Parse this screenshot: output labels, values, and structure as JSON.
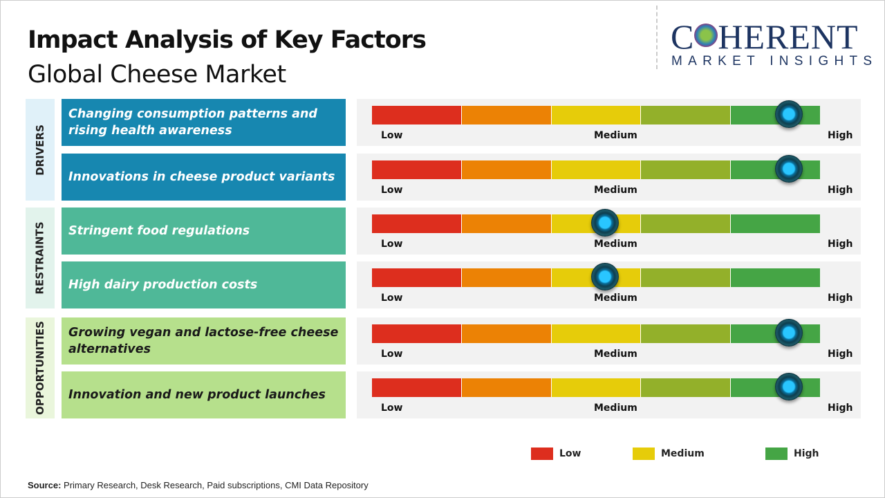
{
  "header": {
    "title": "Impact Analysis of Key Factors",
    "subtitle": "Global Cheese Market"
  },
  "logo": {
    "line1a": "C",
    "line1b": "HERENT",
    "line2": "MARKET INSIGHTS"
  },
  "chart_data": {
    "type": "gauge",
    "title": "Impact Analysis of Key Factors - Global Cheese Market",
    "scale_labels": {
      "low": "Low",
      "medium": "Medium",
      "high": "High"
    },
    "scale_colors": [
      "#dd2e1e",
      "#ec8205",
      "#e6cc0a",
      "#93b02a",
      "#45a545"
    ],
    "categories": [
      {
        "name": "DRIVERS",
        "color": "#1787b0",
        "bg": "#e0f1f9",
        "text": "#ffffff",
        "factors": [
          {
            "label": "Changing consumption patterns and rising health awareness",
            "impact": 0.93
          },
          {
            "label": "Innovations in cheese product variants",
            "impact": 0.93
          }
        ]
      },
      {
        "name": "RESTRAINTS",
        "color": "#4fb898",
        "bg": "#e2f3ec",
        "text": "#ffffff",
        "factors": [
          {
            "label": "Stringent food regulations",
            "impact": 0.52
          },
          {
            "label": "High dairy production costs",
            "impact": 0.52
          }
        ]
      },
      {
        "name": "OPPORTUNITIES",
        "color": "#b6e08c",
        "bg": "#eaf6dc",
        "text": "#1a1a1a",
        "factors": [
          {
            "label": "Growing vegan and lactose-free cheese alternatives",
            "impact": 0.93
          },
          {
            "label": "Innovation and new product launches",
            "impact": 0.93
          }
        ]
      }
    ],
    "legend": [
      {
        "label": "Low",
        "color": "#dd2e1e"
      },
      {
        "label": "Medium",
        "color": "#e6cc0a"
      },
      {
        "label": "High",
        "color": "#45a545"
      }
    ]
  },
  "source": {
    "label": "Source:",
    "text": " Primary Research, Desk Research, Paid subscriptions, CMI Data Repository"
  }
}
